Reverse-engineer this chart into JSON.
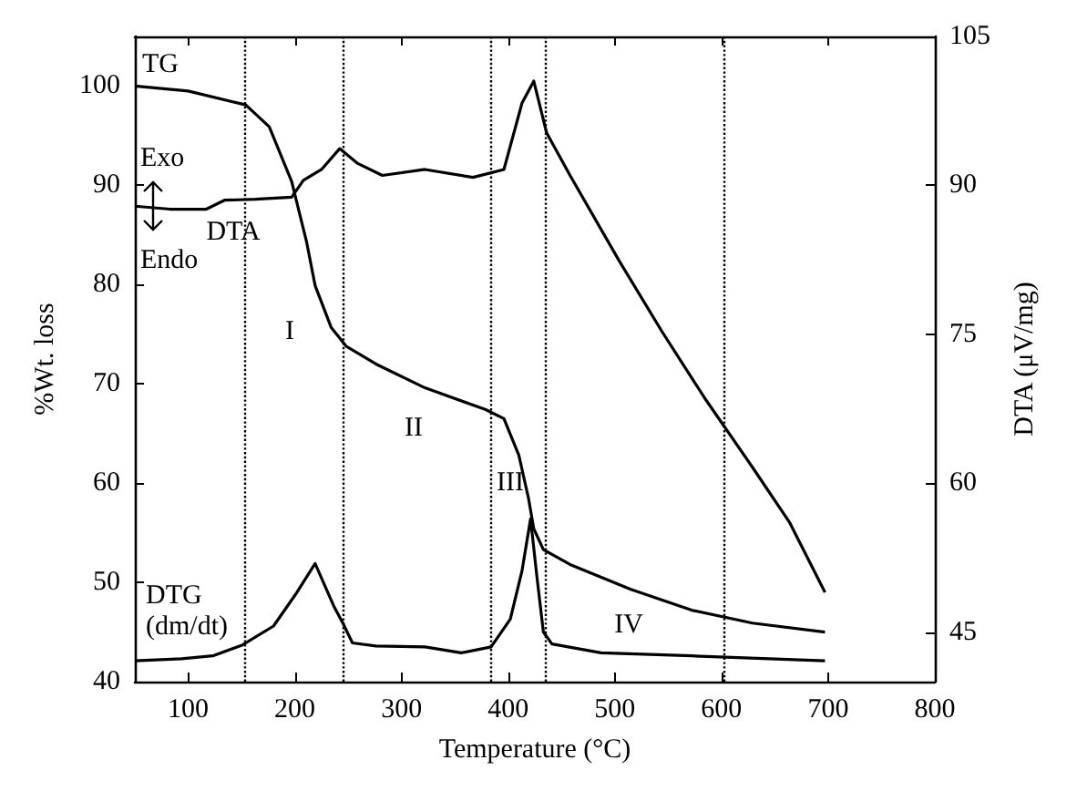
{
  "chart_data": {
    "type": "line",
    "xlabel": "Temperature (°C)",
    "ylabel": "%Wt. loss",
    "y2label": "DTA (μV/mg)",
    "xlim": [
      50,
      800
    ],
    "xticks": [
      100,
      200,
      300,
      400,
      500,
      600,
      700,
      800
    ],
    "ylim": [
      40,
      105
    ],
    "yticks": [
      40,
      50,
      60,
      70,
      80,
      90,
      100
    ],
    "y2lim": [
      40,
      105
    ],
    "y2ticks": [
      45,
      60,
      75,
      90,
      105
    ],
    "grid": false,
    "marker": "none",
    "line_style": "solid",
    "series": [
      {
        "name": "TG",
        "color": "#000000",
        "x": [
          50,
          100,
          154,
          176,
          197,
          211,
          219,
          234,
          248,
          276,
          322,
          379,
          396,
          410,
          419,
          424,
          433,
          458,
          515,
          572,
          629,
          697
        ],
        "values": [
          100,
          99.5,
          98.1,
          95.9,
          90.4,
          84.3,
          79.9,
          75.7,
          73.8,
          72,
          69.6,
          67.4,
          66.5,
          62.8,
          58.5,
          55.4,
          53.3,
          51.8,
          49.3,
          47.2,
          45.9,
          45
        ]
      },
      {
        "name": "DTA",
        "color": "#000000",
        "x": [
          50,
          83,
          117,
          134,
          163,
          197,
          208,
          225,
          242,
          259,
          282,
          322,
          367,
          396,
          413,
          424,
          436,
          458,
          504,
          544,
          584,
          629,
          664,
          697
        ],
        "values": [
          87.9,
          87.6,
          87.6,
          88.5,
          88.6,
          88.8,
          90.5,
          91.6,
          93.7,
          92.2,
          91,
          91.6,
          90.8,
          91.6,
          98.3,
          100.5,
          95.3,
          91,
          82.4,
          75.3,
          68.6,
          61.6,
          56,
          49
        ]
      },
      {
        "name": "DTG (dm/dt)",
        "color": "#000000",
        "x": [
          50,
          94,
          123,
          151,
          180,
          202,
          219,
          237,
          245,
          254,
          276,
          322,
          356,
          384,
          402,
          413,
          421,
          427,
          433,
          441,
          487,
          572,
          697
        ],
        "values": [
          42.1,
          42.3,
          42.6,
          43.7,
          45.6,
          49,
          51.9,
          47.5,
          45.9,
          43.9,
          43.6,
          43.5,
          42.9,
          43.5,
          46.3,
          51.2,
          56.4,
          50.5,
          45,
          43.8,
          42.9,
          42.6,
          42.1
        ]
      }
    ],
    "ref_lines": [
      {
        "axis": "x",
        "value": 153,
        "color": "#000000",
        "line_style": "dotted"
      },
      {
        "axis": "x",
        "value": 246,
        "color": "#000000",
        "line_style": "dotted"
      },
      {
        "axis": "x",
        "value": 384,
        "color": "#000000",
        "line_style": "dotted"
      },
      {
        "axis": "x",
        "value": 435,
        "color": "#000000",
        "line_style": "dotted"
      },
      {
        "axis": "x",
        "value": 603,
        "color": "#000000",
        "line_style": "dotted"
      }
    ],
    "annotations": [
      "I",
      "II",
      "III",
      "IV",
      "Exo",
      "Endo"
    ]
  }
}
